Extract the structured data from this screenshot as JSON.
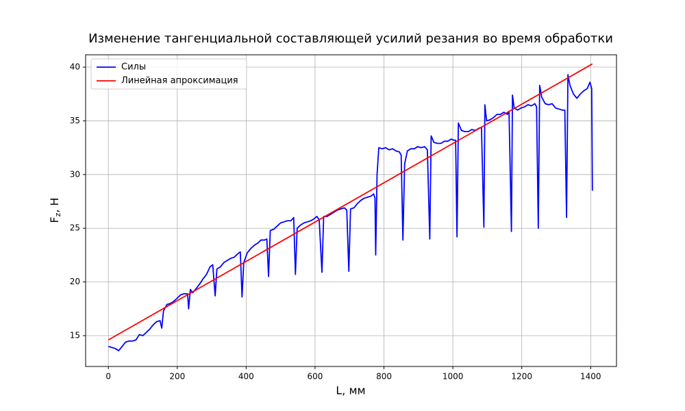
{
  "chart_data": {
    "type": "line",
    "title": "Изменение тангенциальной составляющей усилий резания во время обработки",
    "xlabel": "L, мм",
    "ylabel": [
      "F",
      "z",
      ", Н"
    ],
    "xlim": [
      -66,
      1475
    ],
    "ylim": [
      12.13,
      41.15
    ],
    "xticks": [
      0,
      200,
      400,
      600,
      800,
      1000,
      1200,
      1400
    ],
    "yticks": [
      15,
      20,
      25,
      30,
      35,
      40
    ],
    "grid": true,
    "legend": "upper left",
    "series": [
      {
        "name": "Силы",
        "color": "#0000ff",
        "x": [
          0,
          10,
          20,
          30,
          40,
          50,
          60,
          70,
          80,
          90,
          100,
          110,
          120,
          130,
          140,
          150,
          155,
          160,
          170,
          180,
          190,
          200,
          210,
          220,
          230,
          233,
          238,
          245,
          255,
          265,
          275,
          285,
          295,
          303,
          310,
          315,
          325,
          335,
          345,
          355,
          365,
          375,
          383,
          388,
          393,
          403,
          413,
          423,
          433,
          443,
          453,
          460,
          465,
          470,
          480,
          490,
          500,
          510,
          520,
          530,
          538,
          543,
          548,
          558,
          568,
          578,
          588,
          598,
          605,
          612,
          620,
          625,
          635,
          645,
          655,
          665,
          675,
          685,
          692,
          698,
          703,
          713,
          723,
          733,
          743,
          753,
          763,
          770,
          774,
          776,
          780,
          785,
          795,
          805,
          815,
          825,
          835,
          845,
          850,
          855,
          860,
          868,
          878,
          888,
          898,
          908,
          918,
          926,
          933,
          937,
          945,
          955,
          965,
          975,
          985,
          995,
          1003,
          1008,
          1012,
          1016,
          1025,
          1035,
          1045,
          1055,
          1065,
          1075,
          1083,
          1090,
          1093,
          1098,
          1108,
          1118,
          1128,
          1138,
          1148,
          1158,
          1163,
          1170,
          1173,
          1178,
          1188,
          1198,
          1208,
          1218,
          1228,
          1238,
          1243,
          1248,
          1252,
          1258,
          1268,
          1278,
          1288,
          1298,
          1308,
          1318,
          1325,
          1330,
          1334,
          1340,
          1350,
          1360,
          1370,
          1380,
          1390,
          1398,
          1403,
          1405
        ],
        "values": [
          14.0,
          13.9,
          13.8,
          13.6,
          14.0,
          14.4,
          14.5,
          14.5,
          14.6,
          15.1,
          15.0,
          15.3,
          15.6,
          16.0,
          16.3,
          16.4,
          15.7,
          17.3,
          17.9,
          18.0,
          18.2,
          18.5,
          18.8,
          18.9,
          18.9,
          17.5,
          19.3,
          19.0,
          19.4,
          19.8,
          20.3,
          20.7,
          21.4,
          21.6,
          18.7,
          21.2,
          21.4,
          21.8,
          22.0,
          22.2,
          22.3,
          22.6,
          22.8,
          18.6,
          21.8,
          22.7,
          23.1,
          23.4,
          23.6,
          23.9,
          23.9,
          24.0,
          20.5,
          24.8,
          24.9,
          25.2,
          25.5,
          25.6,
          25.7,
          25.7,
          26.0,
          20.7,
          25.0,
          25.3,
          25.5,
          25.6,
          25.7,
          25.9,
          26.1,
          25.8,
          20.9,
          26.1,
          26.1,
          26.3,
          26.5,
          26.7,
          26.8,
          26.9,
          26.7,
          21.0,
          26.8,
          26.9,
          27.3,
          27.6,
          27.8,
          27.9,
          28.0,
          28.2,
          27.8,
          22.5,
          30.0,
          32.5,
          32.4,
          32.5,
          32.3,
          32.4,
          32.2,
          32.1,
          31.8,
          23.9,
          31.0,
          32.2,
          32.4,
          32.4,
          32.6,
          32.5,
          32.6,
          32.3,
          24.0,
          33.6,
          33.0,
          32.9,
          32.9,
          33.1,
          33.1,
          33.3,
          33.2,
          33.2,
          24.2,
          34.8,
          34.1,
          34.0,
          34.0,
          34.2,
          34.1,
          34.3,
          34.4,
          25.1,
          36.5,
          35.0,
          35.1,
          35.3,
          35.6,
          35.6,
          35.8,
          35.6,
          35.9,
          24.7,
          37.4,
          36.2,
          36.0,
          36.2,
          36.3,
          36.5,
          36.4,
          36.6,
          36.3,
          25.0,
          38.3,
          37.2,
          36.6,
          36.5,
          36.6,
          36.2,
          36.1,
          36.0,
          36.0,
          26.0,
          39.3,
          38.3,
          37.5,
          37.1,
          37.5,
          37.8,
          38.0,
          38.6,
          38.0,
          28.5
        ]
      },
      {
        "name": "Линейная апроксимация",
        "color": "#ff0000",
        "x": [
          0,
          1405
        ],
        "values": [
          14.6,
          40.3
        ]
      }
    ]
  }
}
